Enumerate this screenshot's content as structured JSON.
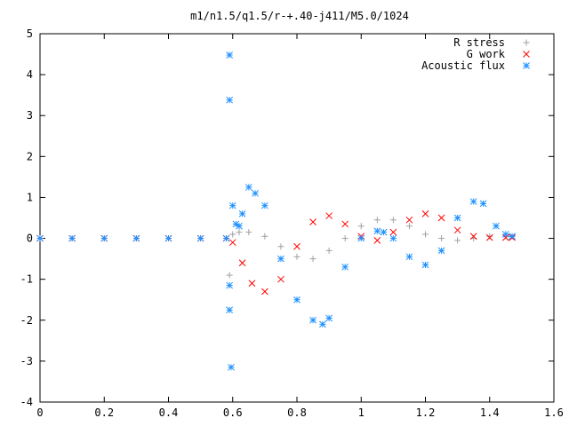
{
  "chart_data": {
    "type": "scatter",
    "title": "m1/n1.5/q1.5/r-+.40-j411/M5.0/1024",
    "xlabel": "",
    "ylabel": "",
    "xlim": [
      0,
      1.6
    ],
    "ylim": [
      -4,
      5
    ],
    "xticks": [
      0,
      0.2,
      0.4,
      0.6,
      0.8,
      1,
      1.2,
      1.4,
      1.6
    ],
    "xtick_labels": [
      "0",
      "0.2",
      "0.4",
      "0.6",
      "0.8",
      "1",
      "1.2",
      "1.4",
      "1.6"
    ],
    "yticks": [
      -4,
      -3,
      -2,
      -1,
      0,
      1,
      2,
      3,
      4,
      5
    ],
    "ytick_labels": [
      "-4",
      "-3",
      "-2",
      "-1",
      "0",
      "1",
      "2",
      "3",
      "4",
      "5"
    ],
    "grid": false,
    "legend_position": "top-right",
    "series": [
      {
        "name": "R stress",
        "marker": "plus",
        "color": "#a0a0a0",
        "x": [
          0.0,
          0.1,
          0.2,
          0.3,
          0.4,
          0.5,
          0.58,
          0.59,
          0.6,
          0.62,
          0.65,
          0.7,
          0.75,
          0.8,
          0.85,
          0.9,
          0.95,
          1.0,
          1.05,
          1.1,
          1.15,
          1.2,
          1.25,
          1.3,
          1.35,
          1.4,
          1.45,
          1.47
        ],
        "y": [
          0,
          0,
          0,
          0,
          0,
          0,
          0,
          -0.9,
          0.1,
          0.15,
          0.15,
          0.05,
          -0.2,
          -0.45,
          -0.5,
          -0.3,
          0.0,
          0.3,
          0.45,
          0.45,
          0.3,
          0.1,
          0.0,
          -0.05,
          0.0,
          0.05,
          0.05,
          0.05
        ]
      },
      {
        "name": "G work",
        "marker": "x",
        "color": "#ff0000",
        "x": [
          0.0,
          0.1,
          0.2,
          0.3,
          0.4,
          0.5,
          0.58,
          0.6,
          0.63,
          0.66,
          0.7,
          0.75,
          0.8,
          0.85,
          0.9,
          0.95,
          1.0,
          1.05,
          1.1,
          1.15,
          1.2,
          1.25,
          1.3,
          1.35,
          1.4,
          1.45,
          1.47
        ],
        "y": [
          0,
          0,
          0,
          0,
          0,
          0,
          0,
          -0.1,
          -0.6,
          -1.1,
          -1.3,
          -1.0,
          -0.2,
          0.4,
          0.55,
          0.35,
          0.05,
          -0.05,
          0.15,
          0.45,
          0.6,
          0.5,
          0.2,
          0.05,
          0.02,
          0.02,
          0.02
        ]
      },
      {
        "name": "Acoustic flux",
        "marker": "star",
        "color": "#1e90ff",
        "x": [
          0.0,
          0.1,
          0.2,
          0.3,
          0.4,
          0.5,
          0.58,
          0.59,
          0.59,
          0.59,
          0.59,
          0.595,
          0.6,
          0.61,
          0.62,
          0.63,
          0.65,
          0.67,
          0.7,
          0.75,
          0.8,
          0.85,
          0.88,
          0.9,
          0.95,
          1.0,
          1.05,
          1.07,
          1.1,
          1.15,
          1.2,
          1.25,
          1.3,
          1.35,
          1.38,
          1.42,
          1.45,
          1.47
        ],
        "y": [
          0,
          0,
          0,
          0,
          0,
          0,
          0,
          4.48,
          3.38,
          -1.75,
          -1.15,
          -3.15,
          0.8,
          0.35,
          0.3,
          0.6,
          1.25,
          1.1,
          0.8,
          -0.5,
          -1.5,
          -2.0,
          -2.1,
          -1.95,
          -0.7,
          0.0,
          0.18,
          0.15,
          0.0,
          -0.45,
          -0.65,
          -0.3,
          0.5,
          0.9,
          0.85,
          0.3,
          0.1,
          0.05
        ]
      }
    ]
  }
}
